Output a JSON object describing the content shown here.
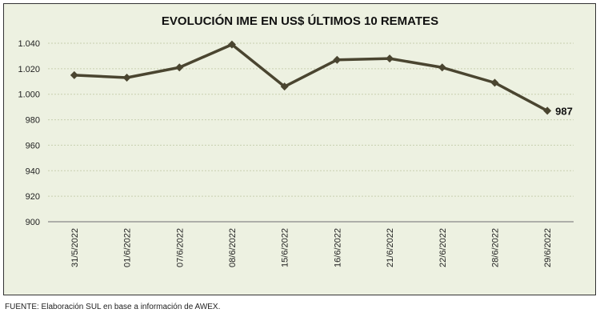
{
  "chart_data": {
    "type": "line",
    "title": "EVOLUCIÓN IME EN US$ ÚLTIMOS 10 REMATES",
    "categories": [
      "31/5/2022",
      "01/6/2022",
      "07/6/2022",
      "08/6/2022",
      "15/6/2022",
      "16/6/2022",
      "21/6/2022",
      "22/6/2022",
      "28/6/2022",
      "29/6/2022"
    ],
    "values": [
      1015,
      1013,
      1021,
      1039,
      1006,
      1027,
      1028,
      1021,
      1009,
      987
    ],
    "ylim": [
      900,
      1040
    ],
    "yticks": [
      900,
      920,
      940,
      960,
      980,
      1000,
      1020,
      1040
    ],
    "ytick_labels": [
      "900",
      "920",
      "940",
      "960",
      "980",
      "1.000",
      "1.020",
      "1.040"
    ],
    "data_labels": [
      {
        "index": 9,
        "text": "987"
      }
    ],
    "grid": true,
    "line_color": "#4a4530",
    "background": "#edf1e1"
  },
  "footer": "FUENTE: Elaboración SUL en base a información de AWEX."
}
